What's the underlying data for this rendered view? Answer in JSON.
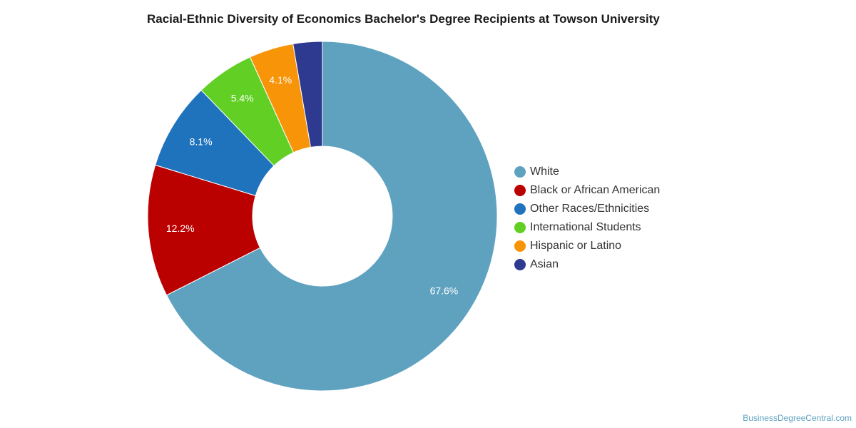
{
  "chart_data": {
    "type": "pie",
    "title": "Racial-Ethnic Diversity of Economics Bachelor's Degree Recipients at Towson University",
    "categories": [
      "White",
      "Black or African American",
      "Other Races/Ethnicities",
      "International Students",
      "Hispanic or Latino",
      "Asian"
    ],
    "values": [
      67.6,
      12.2,
      8.1,
      5.4,
      4.1,
      2.7
    ],
    "data_labels": [
      "67.6%",
      "12.2%",
      "8.1%",
      "5.4%",
      "4.1%",
      ""
    ],
    "colors": [
      "#5fa2c0",
      "#bb0000",
      "#1f73bd",
      "#62cf24",
      "#f79408",
      "#2e3a90"
    ],
    "donut": true,
    "legend_position": "right"
  },
  "credit": "BusinessDegreeCentral.com"
}
